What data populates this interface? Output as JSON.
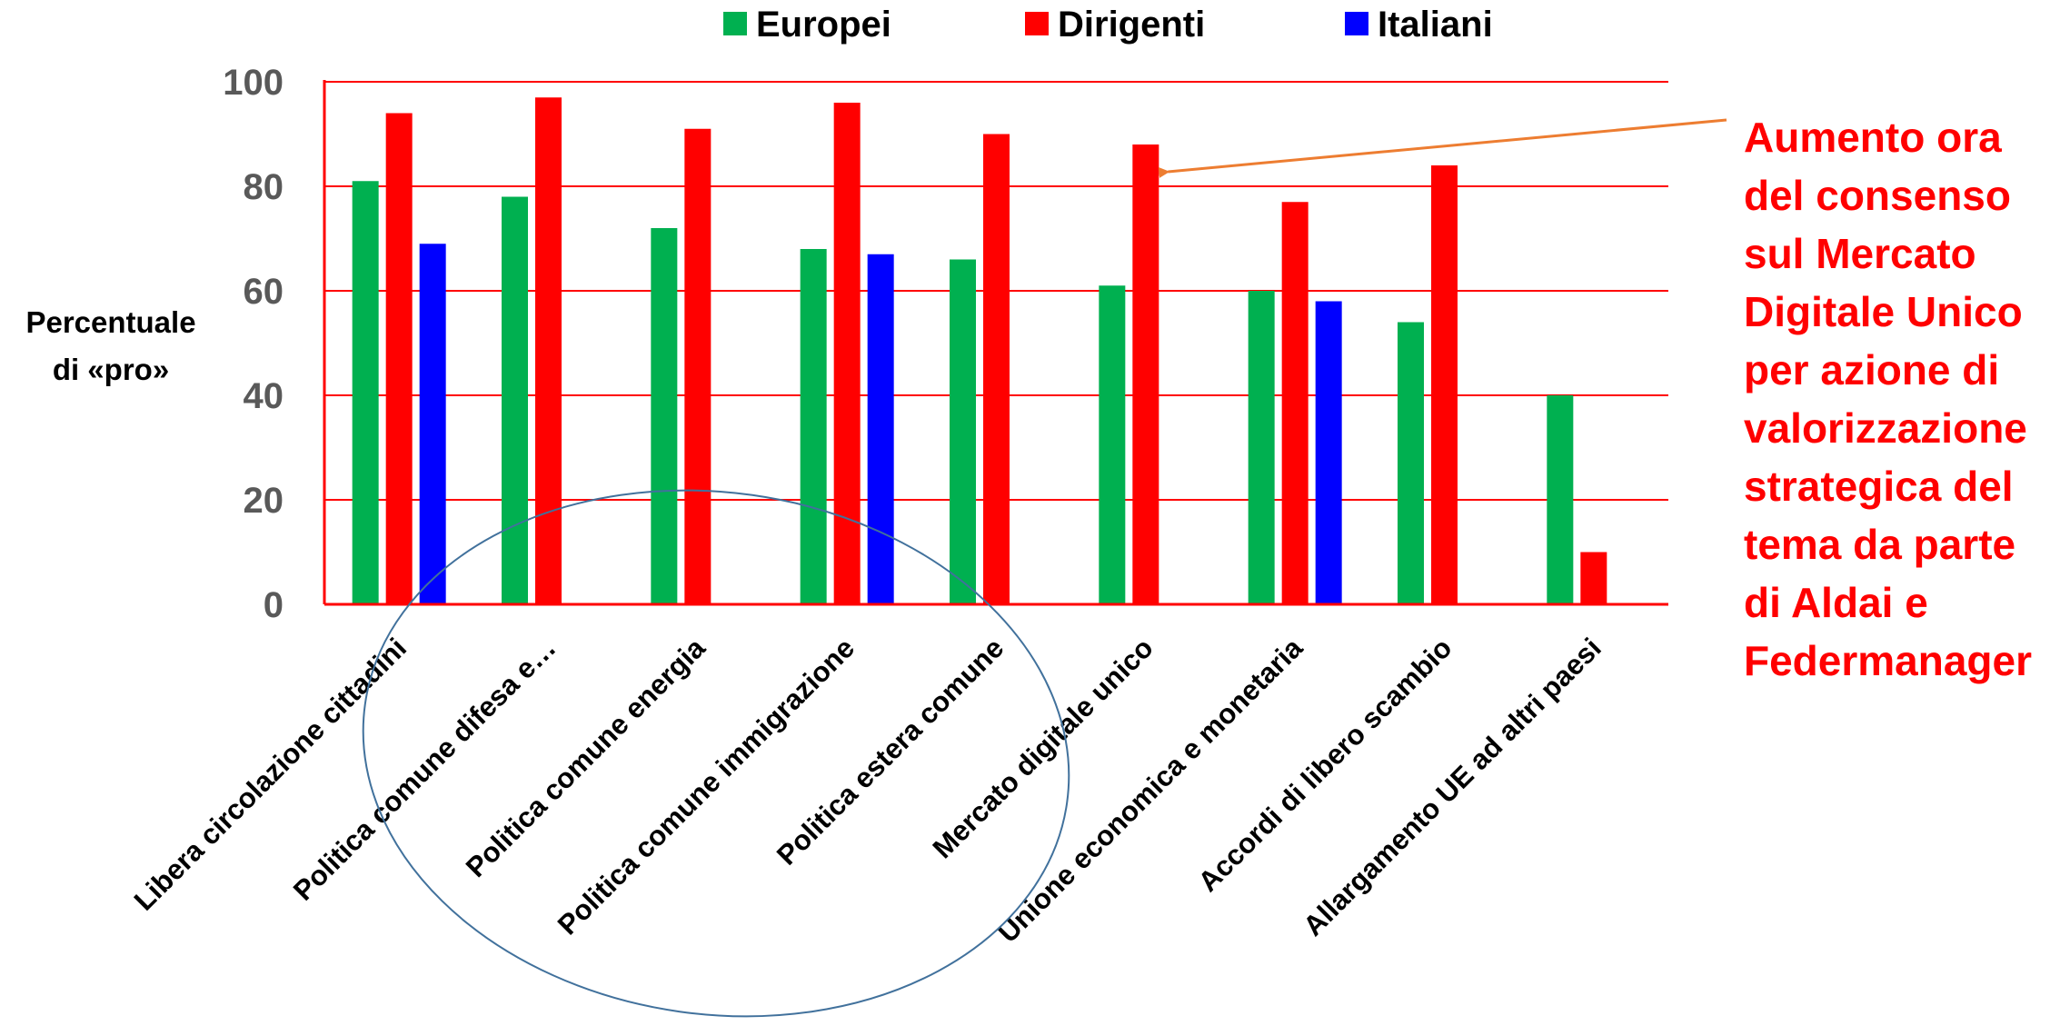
{
  "chart_data": {
    "type": "bar",
    "categories": [
      "Libera circolazione cittadini",
      "Politica comune difesa e…",
      "Politica comune energia",
      "Politica comune immigrazione",
      "Politica estera comune",
      "Mercato digitale unico",
      "Unione economica e monetaria",
      "Accordi di libero scambio",
      "Allargamento UE ad altri paesi"
    ],
    "series": [
      {
        "name": "Europei",
        "color": "#00b050",
        "values": [
          81,
          78,
          72,
          68,
          66,
          61,
          60,
          54,
          40
        ]
      },
      {
        "name": "Dirigenti",
        "color": "#ff0000",
        "values": [
          94,
          97,
          91,
          96,
          90,
          88,
          77,
          84,
          10
        ]
      },
      {
        "name": "Italiani",
        "color": "#0000ff",
        "values": [
          69,
          null,
          null,
          67,
          null,
          null,
          58,
          null,
          null
        ]
      }
    ],
    "ylabel_lines": [
      "Percentuale",
      "di «pro»"
    ],
    "yticks": [
      "0",
      "20",
      "40",
      "60",
      "80",
      "100"
    ],
    "ylim": [
      0,
      100
    ],
    "grid": true,
    "grid_color": "#ff0000",
    "legend_position": "top",
    "annotation": {
      "lines": [
        "Aumento ora",
        "del consenso",
        "sul Mercato",
        "Digitale Unico",
        "per azione di",
        "valorizzazione",
        "strategica del",
        "tema da parte",
        "di Aldai e",
        "Federmanager"
      ],
      "color": "#ff0000",
      "arrow_color": "#ed7d31",
      "points_to_category": "Mercato digitale unico",
      "points_to_series": "Dirigenti"
    },
    "highlight_ellipse_color": "#41719c"
  }
}
